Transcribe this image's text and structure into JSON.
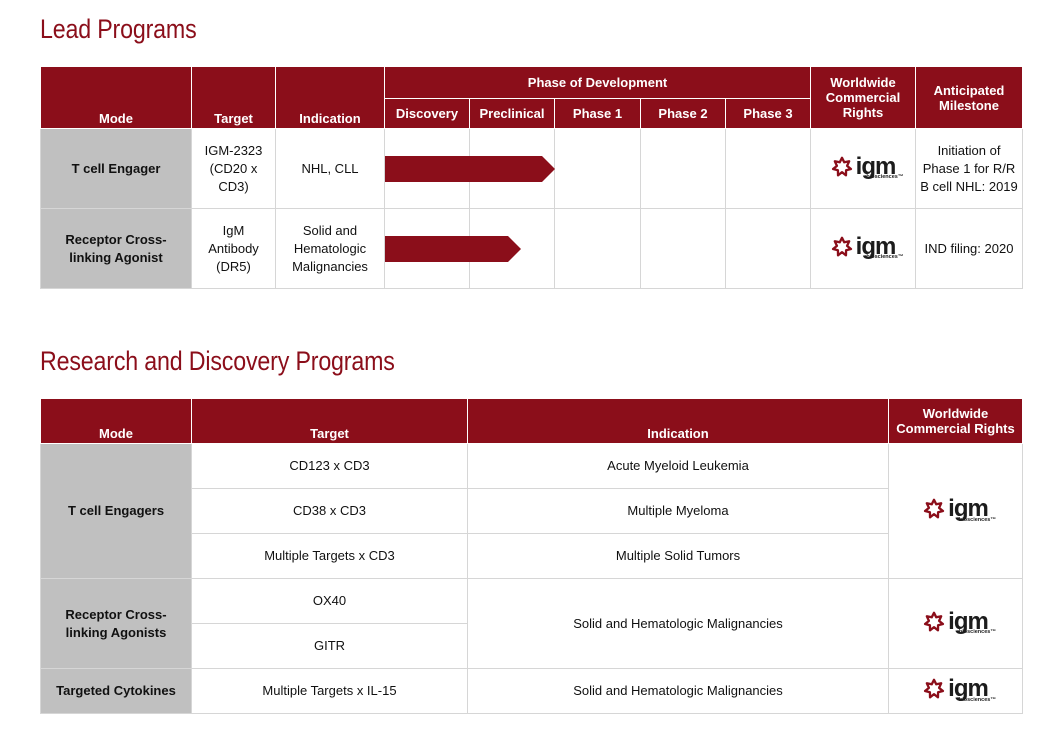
{
  "lead": {
    "title": "Lead Programs",
    "headers": {
      "mode": "Mode",
      "target": "Target",
      "indication": "Indication",
      "phase_group": "Phase of Development",
      "phases": [
        "Discovery",
        "Preclinical",
        "Phase 1",
        "Phase 2",
        "Phase 3"
      ],
      "rights": "Worldwide Commercial Rights",
      "milestone": "Anticipated Milestone"
    },
    "rows": [
      {
        "mode": "T cell Engager",
        "target": "IGM-2323 (CD20 x CD3)",
        "indication": "NHL, CLL",
        "progress_phases": 2.0,
        "milestone": "Initiation of Phase 1 for R/R B cell NHL: 2019"
      },
      {
        "mode": "Receptor Cross-linking Agonist",
        "target": "IgM Antibody (DR5)",
        "indication": "Solid and Hematologic Malignancies",
        "progress_phases": 1.6,
        "milestone": "IND filing: 2020"
      }
    ]
  },
  "research": {
    "title": "Research and Discovery Programs",
    "headers": {
      "mode": "Mode",
      "target": "Target",
      "indication": "Indication",
      "rights": "Worldwide Commercial Rights"
    },
    "groups": [
      {
        "mode": "T cell Engagers",
        "targets": [
          "CD123 x CD3",
          "CD38 x CD3",
          "Multiple Targets x CD3"
        ],
        "indications": [
          "Acute Myeloid Leukemia",
          "Multiple Myeloma",
          "Multiple Solid Tumors"
        ]
      },
      {
        "mode": "Receptor Cross-linking Agonists",
        "targets": [
          "OX40",
          "GITR"
        ],
        "indication": "Solid and Hematologic Malignancies"
      },
      {
        "mode": "Targeted Cytokines",
        "targets": [
          "Multiple Targets x IL-15"
        ],
        "indication": "Solid and Hematologic Malignancies"
      }
    ]
  },
  "logo": {
    "word": "igm",
    "sub": "biosciences™",
    "icon": "igm-star-icon",
    "color": "#8b0e1a"
  },
  "colors": {
    "brand": "#8b0e1a",
    "mode_cell": "#c0c0c0",
    "grid": "#d6d6d6"
  }
}
